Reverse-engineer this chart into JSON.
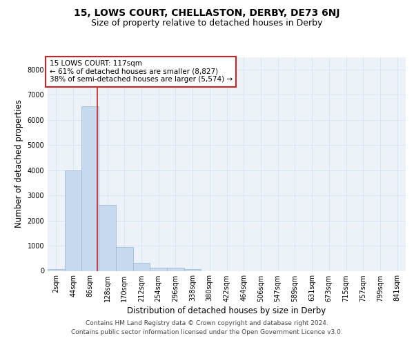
{
  "title": "15, LOWS COURT, CHELLASTON, DERBY, DE73 6NJ",
  "subtitle": "Size of property relative to detached houses in Derby",
  "xlabel": "Distribution of detached houses by size in Derby",
  "ylabel": "Number of detached properties",
  "categories": [
    "2sqm",
    "44sqm",
    "86sqm",
    "128sqm",
    "170sqm",
    "212sqm",
    "254sqm",
    "296sqm",
    "338sqm",
    "380sqm",
    "422sqm",
    "464sqm",
    "506sqm",
    "547sqm",
    "589sqm",
    "631sqm",
    "673sqm",
    "715sqm",
    "757sqm",
    "799sqm",
    "841sqm"
  ],
  "values": [
    60,
    4000,
    6550,
    2620,
    950,
    310,
    125,
    110,
    65,
    0,
    0,
    0,
    0,
    0,
    0,
    0,
    0,
    0,
    0,
    0,
    0
  ],
  "bar_color": "#c6d9ee",
  "bar_edge_color": "#9ab5d0",
  "annotation_line_label": "15 LOWS COURT: 117sqm",
  "annotation_line1": "← 61% of detached houses are smaller (8,827)",
  "annotation_line2": "38% of semi-detached houses are larger (5,574) →",
  "annotation_box_facecolor": "#ffffff",
  "annotation_box_edgecolor": "#cc2222",
  "red_line_color": "#cc2222",
  "red_line_x": 2.42,
  "grid_color": "#d8e4f0",
  "background_color": "#edf2f9",
  "footer_line1": "Contains HM Land Registry data © Crown copyright and database right 2024.",
  "footer_line2": "Contains public sector information licensed under the Open Government Licence v3.0.",
  "ylim": [
    0,
    8500
  ],
  "yticks": [
    0,
    1000,
    2000,
    3000,
    4000,
    5000,
    6000,
    7000,
    8000
  ],
  "title_fontsize": 10,
  "subtitle_fontsize": 9,
  "axis_label_fontsize": 8.5,
  "tick_fontsize": 7,
  "annot_fontsize": 7.5,
  "footer_fontsize": 6.5
}
